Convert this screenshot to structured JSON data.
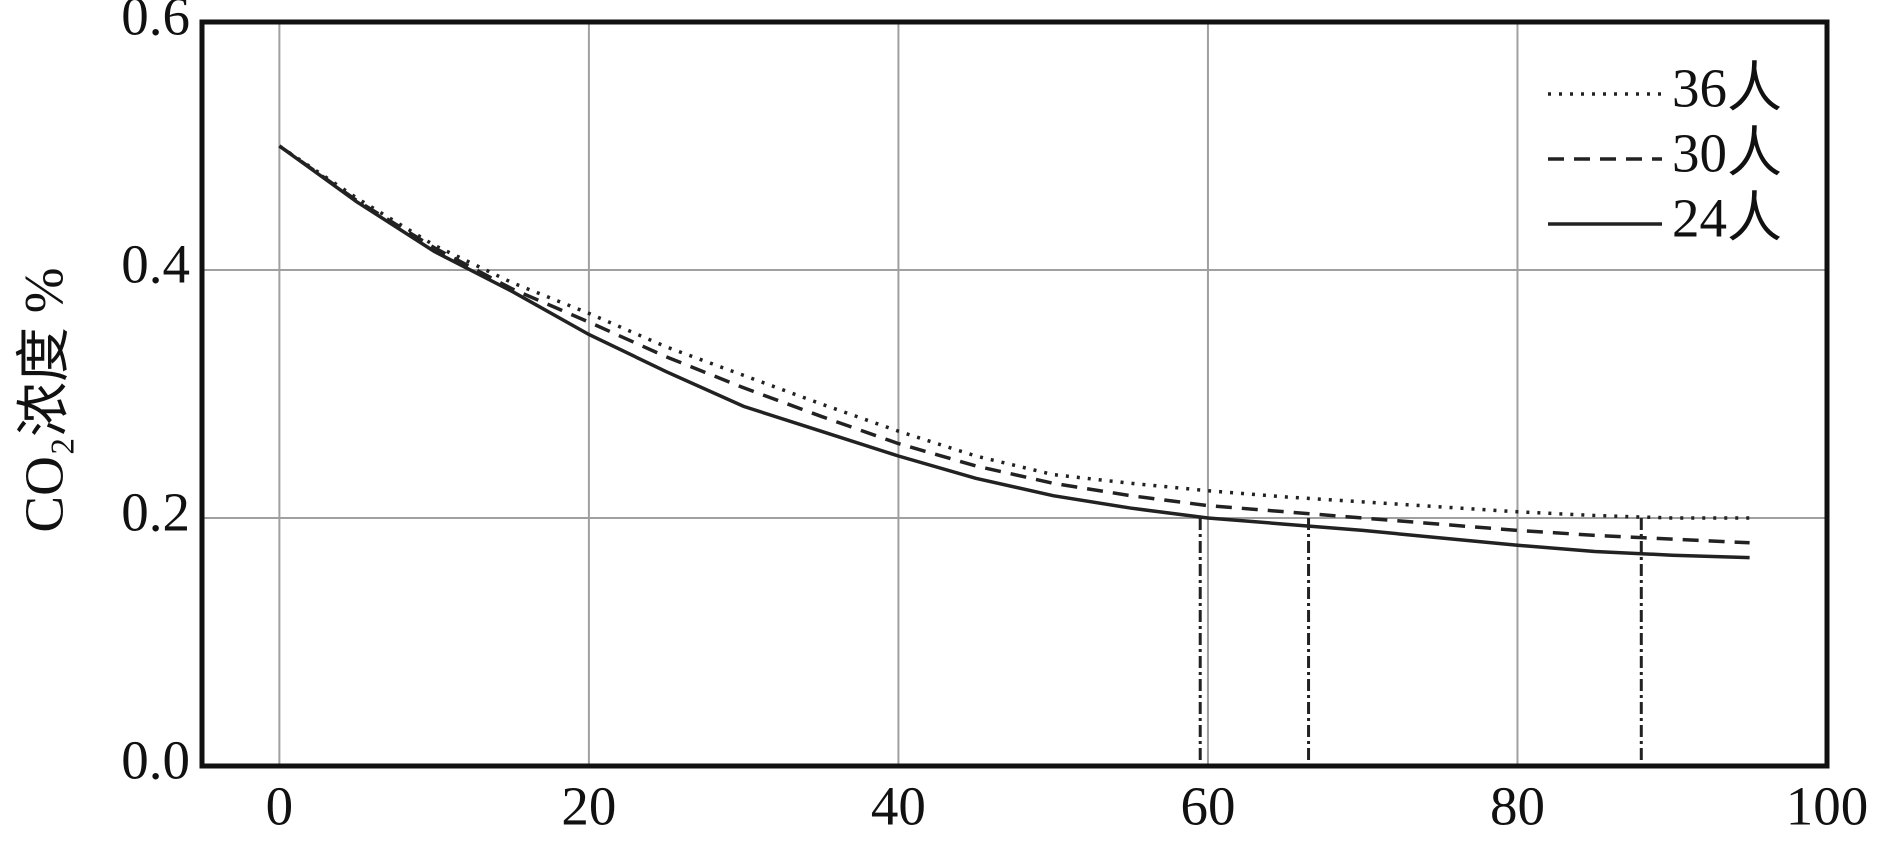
{
  "chart_data": {
    "type": "line",
    "ylabel": "CO₂浓度 %",
    "x": [
      0,
      5,
      10,
      15,
      20,
      25,
      30,
      35,
      40,
      45,
      50,
      55,
      60,
      65,
      70,
      75,
      80,
      85,
      90,
      95
    ],
    "series": [
      {
        "name": "36人",
        "color": "#222222",
        "dash": "dotted",
        "values": [
          0.5,
          0.458,
          0.42,
          0.39,
          0.365,
          0.338,
          0.315,
          0.292,
          0.27,
          0.25,
          0.235,
          0.228,
          0.222,
          0.217,
          0.213,
          0.209,
          0.205,
          0.202,
          0.2,
          0.2
        ]
      },
      {
        "name": "30人",
        "color": "#222222",
        "dash": "dashed",
        "values": [
          0.5,
          0.456,
          0.418,
          0.385,
          0.358,
          0.33,
          0.305,
          0.282,
          0.26,
          0.242,
          0.228,
          0.218,
          0.21,
          0.205,
          0.2,
          0.195,
          0.19,
          0.186,
          0.183,
          0.18
        ]
      },
      {
        "name": "24人",
        "color": "#222222",
        "dash": "solid",
        "values": [
          0.5,
          0.455,
          0.415,
          0.383,
          0.348,
          0.318,
          0.29,
          0.27,
          0.25,
          0.232,
          0.218,
          0.208,
          0.2,
          0.195,
          0.19,
          0.184,
          0.178,
          0.173,
          0.17,
          0.168
        ]
      }
    ],
    "drop_lines": {
      "x": [
        59.5,
        66.5,
        88
      ],
      "y": [
        0.2,
        0.2,
        0.2
      ]
    },
    "xlim": [
      -5,
      100
    ],
    "xticks": [
      0,
      20,
      40,
      60,
      80,
      100
    ],
    "ylim": [
      0,
      0.6
    ],
    "yticks": [
      {
        "value": 0,
        "label": "0.0"
      },
      0.2,
      0.4,
      0.6
    ],
    "grid": true,
    "legend": "upper right"
  }
}
